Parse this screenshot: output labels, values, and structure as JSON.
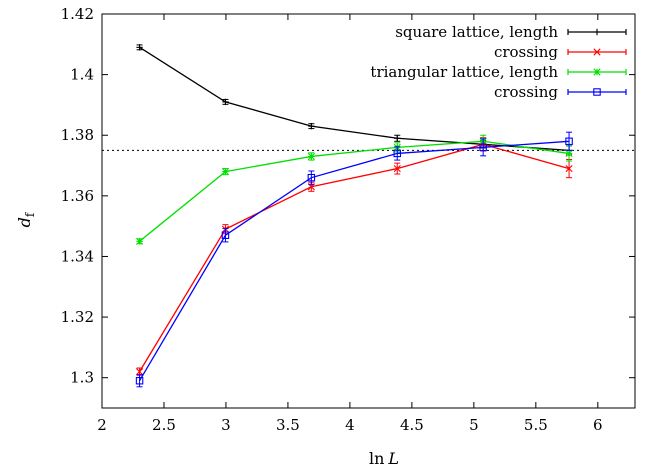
{
  "chart_data": {
    "type": "line",
    "xlabel_main": "ln",
    "xlabel_var": "L",
    "ylabel_main": "d",
    "ylabel_sub": "f",
    "xlim": [
      2,
      6.3
    ],
    "ylim": [
      1.29,
      1.42
    ],
    "xticks": [
      "2",
      "2.5",
      "3",
      "3.5",
      "4",
      "4.5",
      "5",
      "5.5",
      "6"
    ],
    "yticks": [
      "1.3",
      "1.32",
      "1.34",
      "1.36",
      "1.38",
      "1.4",
      "1.42"
    ],
    "reference_line": {
      "y": 1.375,
      "style": "dotted"
    },
    "legend_position": "top-right",
    "series": [
      {
        "name": "square lattice, length",
        "color": "#000000",
        "marker": "plus",
        "x": [
          2.303,
          2.996,
          3.689,
          4.382,
          5.075,
          5.768
        ],
        "y": [
          1.409,
          1.391,
          1.383,
          1.379,
          1.377,
          1.375
        ],
        "err": [
          0.0008,
          0.0008,
          0.0008,
          0.001,
          0.0012,
          0.0015
        ]
      },
      {
        "name": "crossing",
        "color": "#ff0000",
        "marker": "cross",
        "x": [
          2.303,
          2.996,
          3.689,
          4.382,
          5.075,
          5.768
        ],
        "y": [
          1.302,
          1.349,
          1.363,
          1.369,
          1.377,
          1.369
        ],
        "err": [
          0.0012,
          0.0015,
          0.0015,
          0.0018,
          0.0022,
          0.003
        ]
      },
      {
        "name": "triangular lattice, length",
        "color": "#00e000",
        "marker": "star",
        "x": [
          2.303,
          2.996,
          3.689,
          4.382,
          5.075,
          5.768
        ],
        "y": [
          1.345,
          1.368,
          1.373,
          1.376,
          1.378,
          1.374
        ],
        "err": [
          0.0008,
          0.001,
          0.0012,
          0.0015,
          0.002,
          0.0025
        ]
      },
      {
        "name": "crossing",
        "color": "#0000ff",
        "marker": "square",
        "x": [
          2.303,
          2.996,
          3.689,
          4.382,
          5.075,
          5.768
        ],
        "y": [
          1.299,
          1.347,
          1.366,
          1.374,
          1.376,
          1.378
        ],
        "err": [
          0.002,
          0.0022,
          0.0022,
          0.0022,
          0.0028,
          0.003
        ]
      }
    ]
  }
}
